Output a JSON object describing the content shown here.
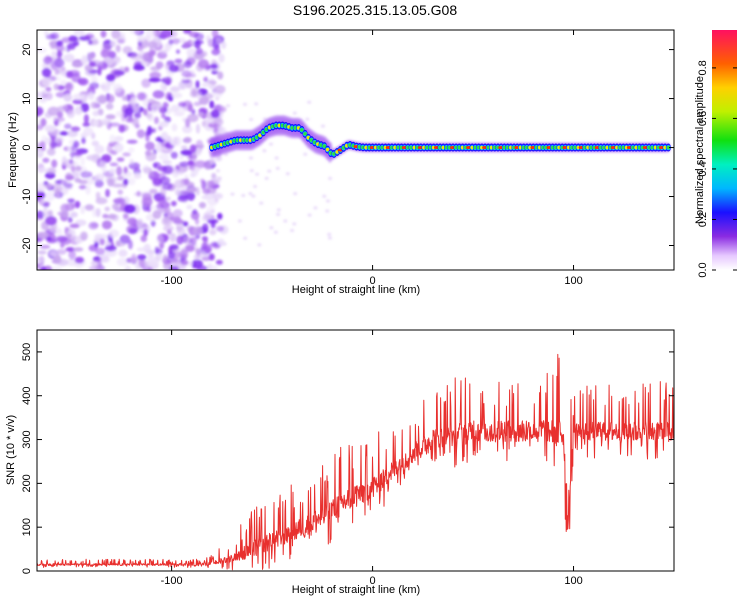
{
  "title": "S196.2025.315.13.05.G08",
  "chart_data": [
    {
      "type": "heatmap",
      "xlabel": "Height of straight line (km)",
      "ylabel": "Frequency (Hz)",
      "xlim": [
        -167,
        150
      ],
      "ylim": [
        -25,
        24
      ],
      "xticks": [
        -100,
        0,
        100
      ],
      "yticks": [
        -20,
        -10,
        0,
        10,
        20
      ],
      "description_values": {
        "noise_region_x": [
          -167,
          -80
        ],
        "signal_trace": {
          "x": [
            -80,
            -76,
            -72,
            -68,
            -64,
            -60,
            -56,
            -52,
            -48,
            -44,
            -40,
            -36,
            -32,
            -28,
            -24,
            -20,
            -16,
            -12,
            -8,
            -4,
            0,
            20,
            40,
            60,
            80,
            100,
            120,
            140,
            148
          ],
          "y": [
            0,
            0.5,
            1,
            1.5,
            1.5,
            1.5,
            2.5,
            4,
            4.5,
            4.5,
            4,
            4,
            2,
            0.8,
            0.3,
            -1.5,
            -0.5,
            0.6,
            0.2,
            0,
            0,
            0,
            0,
            0,
            0,
            0,
            0,
            0,
            0
          ]
        }
      },
      "colorbar": {
        "label": "Normalized spectral amplitude",
        "ticks": [
          0.0,
          0.2,
          0.4,
          0.6,
          0.8
        ],
        "range": [
          0,
          0.95
        ]
      }
    },
    {
      "type": "line",
      "xlabel": "Height of straight line (km)",
      "ylabel": "SNR (10 * v/v)",
      "xlim": [
        -167,
        150
      ],
      "ylim": [
        0,
        550
      ],
      "xticks": [
        -100,
        0,
        100
      ],
      "yticks": [
        0,
        100,
        200,
        300,
        400,
        500
      ],
      "series": [
        {
          "name": "SNR",
          "color": "#e8302e",
          "envelope": {
            "x": [
              -167,
              -140,
              -110,
              -90,
              -80,
              -70,
              -60,
              -50,
              -40,
              -30,
              -20,
              -10,
              0,
              10,
              20,
              30,
              40,
              50,
              60,
              70,
              80,
              90,
              95,
              97,
              100,
              110,
              120,
              130,
              140,
              150
            ],
            "base": [
              15,
              15,
              15,
              15,
              18,
              30,
              50,
              70,
              90,
              110,
              140,
              170,
              190,
              230,
              270,
              300,
              310,
              320,
              320,
              320,
              320,
              320,
              320,
              120,
              320,
              320,
              320,
              320,
              320,
              320
            ],
            "amp": [
              10,
              10,
              10,
              10,
              15,
              40,
              80,
              90,
              90,
              110,
              110,
              110,
              100,
              90,
              90,
              100,
              110,
              110,
              110,
              110,
              110,
              110,
              200,
              200,
              80,
              90,
              90,
              100,
              100,
              100
            ]
          }
        }
      ]
    }
  ]
}
